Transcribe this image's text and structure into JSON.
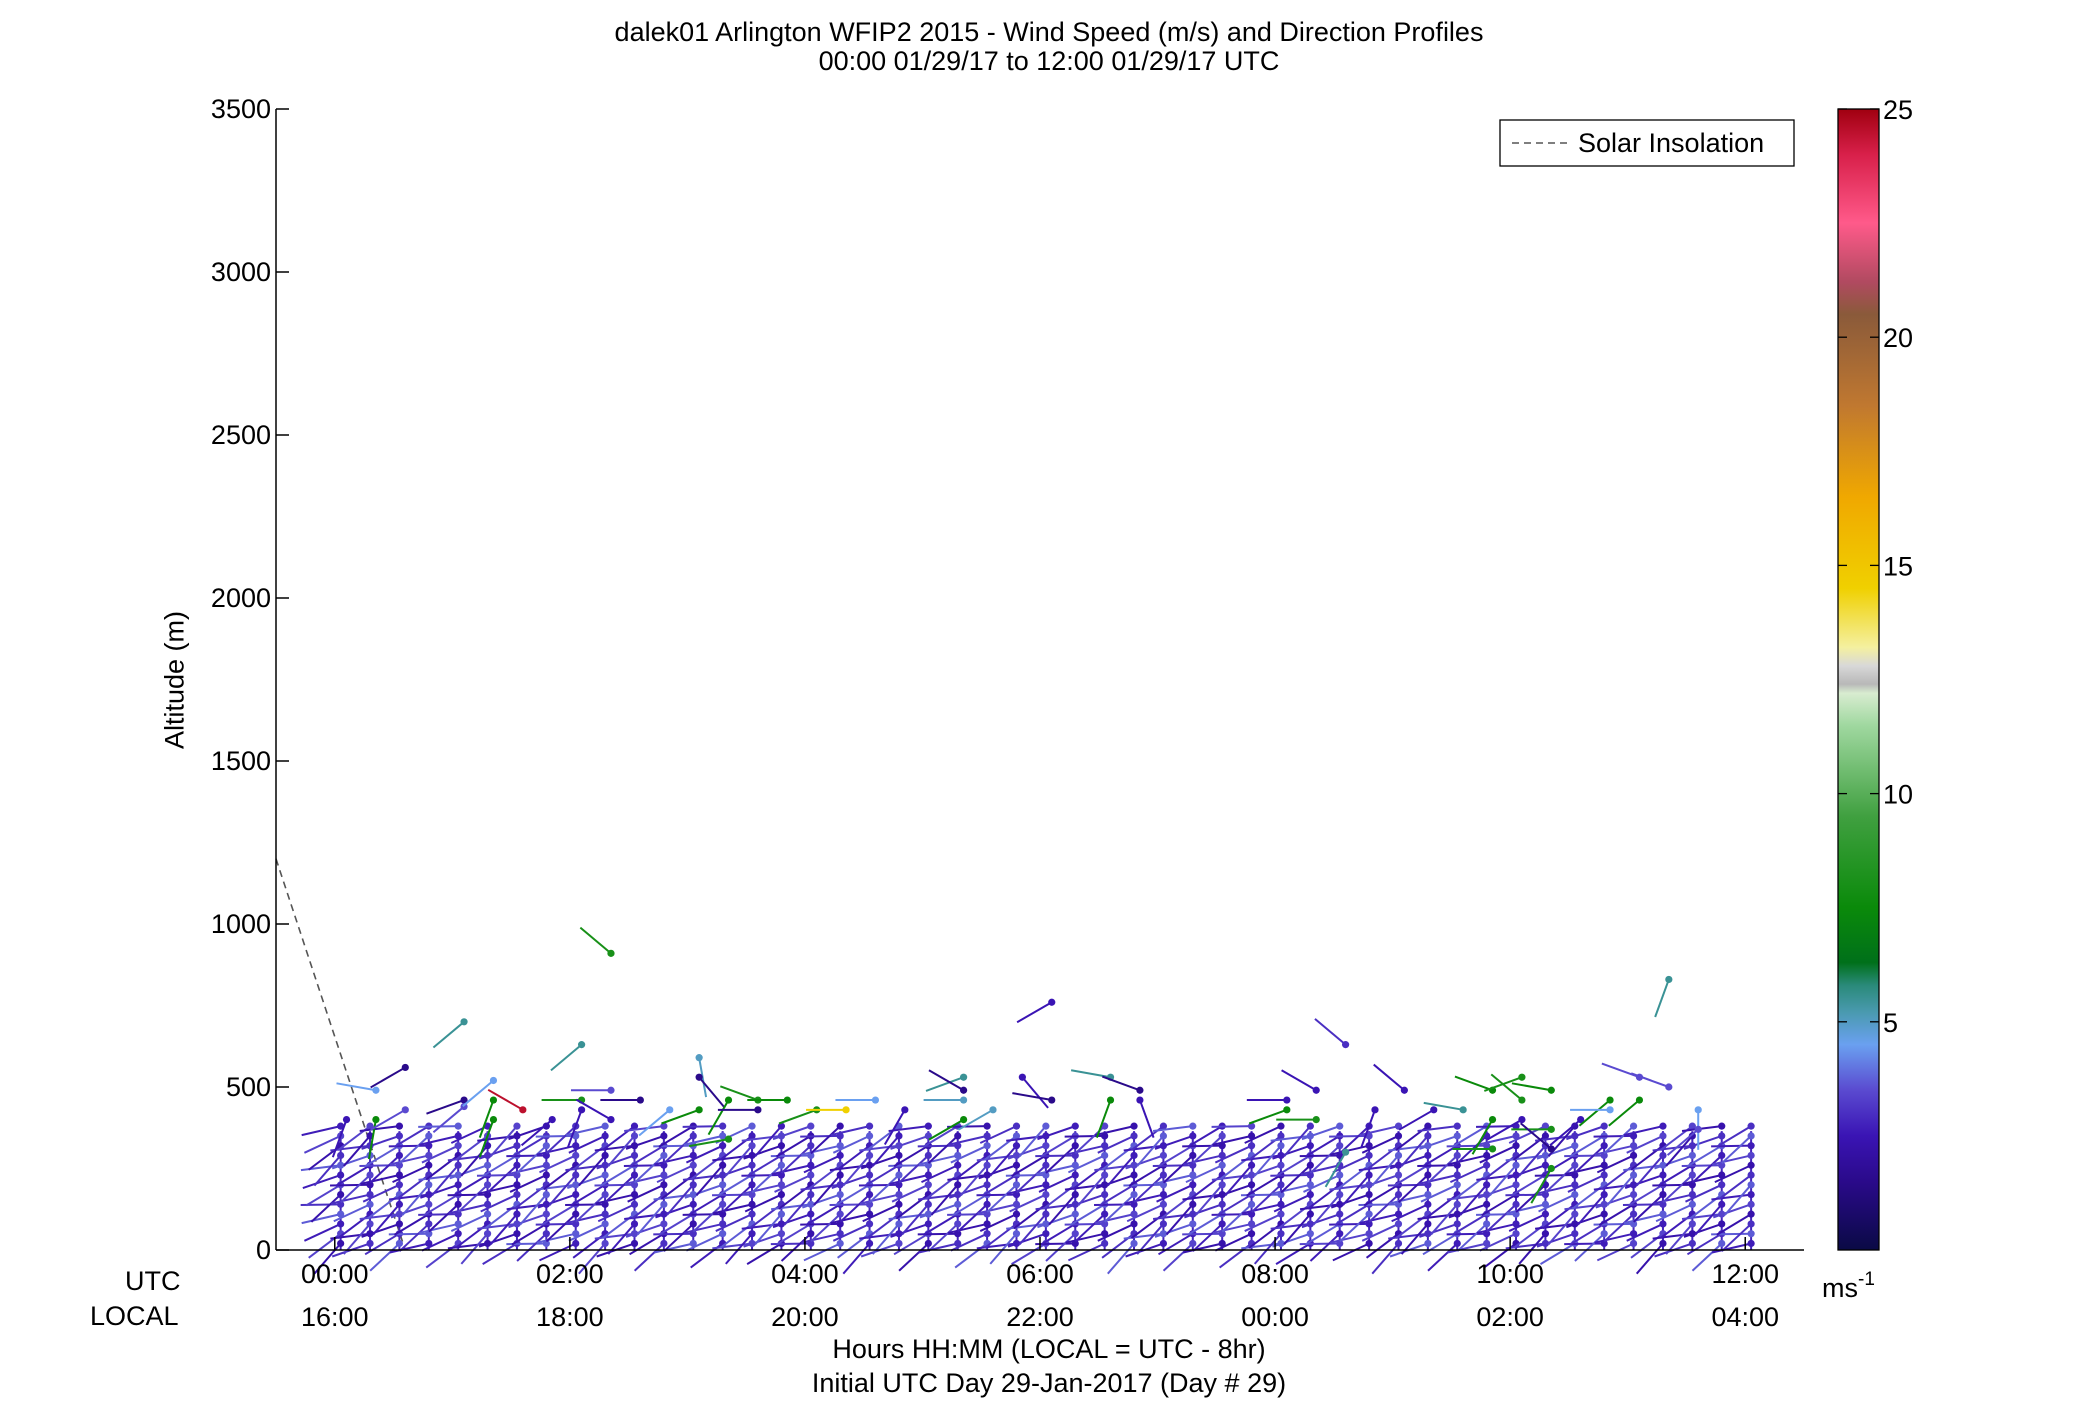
{
  "chart_data": {
    "type": "scatter",
    "title": "dalek01 Arlington WFIP2 2015 - Wind Speed (m/s) and Direction Profiles",
    "subtitle": "00:00 01/29/17 to 12:00 01/29/17  UTC",
    "ylabel": "Altitude (m)",
    "xlabel": "Hours HH:MM  (LOCAL = UTC - 8hr)",
    "xlabel2": "Initial UTC Day 29-Jan-2017 (Day # 29)",
    "row_label_utc": "UTC",
    "row_label_local": "LOCAL",
    "ylim": [
      0,
      3500
    ],
    "yticks": [
      0,
      500,
      1000,
      1500,
      2000,
      2500,
      3000,
      3500
    ],
    "xlim": [
      -0.5,
      12.5
    ],
    "xticks_utc": [
      "00:00",
      "02:00",
      "04:00",
      "06:00",
      "08:00",
      "10:00",
      "12:00"
    ],
    "xticks_local": [
      "16:00",
      "18:00",
      "20:00",
      "22:00",
      "00:00",
      "02:00",
      "04:00"
    ],
    "legend": {
      "position": "top-right",
      "entries": [
        "Solar Insolation"
      ]
    },
    "colorbar": {
      "label": "ms-1",
      "range": [
        0,
        25
      ],
      "ticks": [
        5,
        10,
        15,
        20,
        25
      ],
      "colors": [
        [
          0,
          "#0a0a45"
        ],
        [
          1.5,
          "#2a0a8a"
        ],
        [
          2.5,
          "#3a14b4"
        ],
        [
          3.5,
          "#5a4ad0"
        ],
        [
          4.5,
          "#6aa0f0"
        ],
        [
          5.2,
          "#4a9ab0"
        ],
        [
          5.8,
          "#2a8a7a"
        ],
        [
          6.3,
          "#00701a"
        ],
        [
          7.5,
          "#0a8a0a"
        ],
        [
          9.5,
          "#40a040"
        ],
        [
          11.5,
          "#a0d8a0"
        ],
        [
          12.2,
          "#d8ecd0"
        ],
        [
          12.4,
          "#b8b8b8"
        ],
        [
          12.8,
          "#d8d8d8"
        ],
        [
          13.2,
          "#f4f0a0"
        ],
        [
          14.5,
          "#f0d000"
        ],
        [
          16.5,
          "#f0a800"
        ],
        [
          18.5,
          "#c07830"
        ],
        [
          20.5,
          "#8a5a3a"
        ],
        [
          21.2,
          "#b04a60"
        ],
        [
          22.5,
          "#ff5a8a"
        ],
        [
          24,
          "#d8204a"
        ],
        [
          25,
          "#a00010"
        ]
      ]
    },
    "solar_insolation": [
      [
        -0.5,
        1200
      ],
      [
        0.6,
        0
      ]
    ],
    "profiles": {
      "times_h": [
        0.05,
        0.3,
        0.55,
        0.8,
        1.05,
        1.3,
        1.55,
        1.8,
        2.05,
        2.3,
        2.55,
        2.8,
        3.05,
        3.3,
        3.55,
        3.8,
        4.05,
        4.3,
        4.55,
        4.8,
        5.05,
        5.3,
        5.55,
        5.8,
        6.05,
        6.3,
        6.55,
        6.8,
        7.05,
        7.3,
        7.55,
        7.8,
        8.05,
        8.3,
        8.55,
        8.8,
        9.05,
        9.3,
        9.55,
        9.8,
        10.05,
        10.3,
        10.55,
        10.8,
        11.05,
        11.3,
        11.55,
        11.8,
        12.05
      ],
      "levels_m": [
        20,
        50,
        80,
        110,
        140,
        170,
        200,
        230,
        260,
        290,
        320,
        350,
        380
      ],
      "typical_speed_ms": 3,
      "typical_direction_deg": 245
    },
    "upper_points": [
      {
        "t": 0.1,
        "alt": 400,
        "spd": 2.5,
        "dir": 200
      },
      {
        "t": 0.35,
        "alt": 490,
        "spd": 4.5,
        "dir": 280
      },
      {
        "t": 0.35,
        "alt": 400,
        "spd": 7.5,
        "dir": 190
      },
      {
        "t": 0.6,
        "alt": 560,
        "spd": 1.5,
        "dir": 240
      },
      {
        "t": 0.6,
        "alt": 430,
        "spd": 3.5,
        "dir": 240
      },
      {
        "t": 1.1,
        "alt": 700,
        "spd": 5.5,
        "dir": 230
      },
      {
        "t": 1.1,
        "alt": 460,
        "spd": 1.5,
        "dir": 250
      },
      {
        "t": 1.1,
        "alt": 440,
        "spd": 3.5,
        "dir": 230
      },
      {
        "t": 1.35,
        "alt": 520,
        "spd": 4.5,
        "dir": 230
      },
      {
        "t": 1.35,
        "alt": 400,
        "spd": 7.5,
        "dir": 200
      },
      {
        "t": 1.35,
        "alt": 460,
        "spd": 7.5,
        "dir": 200
      },
      {
        "t": 1.6,
        "alt": 430,
        "spd": 24.5,
        "dir": 300
      },
      {
        "t": 1.85,
        "alt": 400,
        "spd": 2.5,
        "dir": 230
      },
      {
        "t": 2.1,
        "alt": 630,
        "spd": 5.5,
        "dir": 230
      },
      {
        "t": 2.1,
        "alt": 460,
        "spd": 8,
        "dir": 270
      },
      {
        "t": 2.1,
        "alt": 430,
        "spd": 2.5,
        "dir": 200
      },
      {
        "t": 2.35,
        "alt": 910,
        "spd": 8,
        "dir": 310
      },
      {
        "t": 2.35,
        "alt": 490,
        "spd": 3.5,
        "dir": 270
      },
      {
        "t": 2.35,
        "alt": 400,
        "spd": 2.5,
        "dir": 300
      },
      {
        "t": 2.6,
        "alt": 460,
        "spd": 1.5,
        "dir": 270
      },
      {
        "t": 2.85,
        "alt": 430,
        "spd": 4.5,
        "dir": 230
      },
      {
        "t": 3.1,
        "alt": 590,
        "spd": 5,
        "dir": 170
      },
      {
        "t": 3.1,
        "alt": 530,
        "spd": 1.5,
        "dir": 140
      },
      {
        "t": 3.1,
        "alt": 430,
        "spd": 7.5,
        "dir": 250
      },
      {
        "t": 3.35,
        "alt": 460,
        "spd": 7.5,
        "dir": 210
      },
      {
        "t": 3.35,
        "alt": 340,
        "spd": 8,
        "dir": 260
      },
      {
        "t": 3.6,
        "alt": 430,
        "spd": 1.5,
        "dir": 270
      },
      {
        "t": 3.6,
        "alt": 460,
        "spd": 8,
        "dir": 290
      },
      {
        "t": 3.85,
        "alt": 460,
        "spd": 7.5,
        "dir": 270
      },
      {
        "t": 4.1,
        "alt": 430,
        "spd": 8,
        "dir": 250
      },
      {
        "t": 4.35,
        "alt": 430,
        "spd": 14.5,
        "dir": 270
      },
      {
        "t": 4.6,
        "alt": 460,
        "spd": 4.5,
        "dir": 270
      },
      {
        "t": 4.85,
        "alt": 430,
        "spd": 2.5,
        "dir": 210
      },
      {
        "t": 5.35,
        "alt": 530,
        "spd": 5.5,
        "dir": 250
      },
      {
        "t": 5.35,
        "alt": 490,
        "spd": 1.5,
        "dir": 300
      },
      {
        "t": 5.35,
        "alt": 460,
        "spd": 5,
        "dir": 270
      },
      {
        "t": 5.35,
        "alt": 400,
        "spd": 7.5,
        "dir": 240
      },
      {
        "t": 5.6,
        "alt": 430,
        "spd": 5,
        "dir": 240
      },
      {
        "t": 5.85,
        "alt": 530,
        "spd": 2.5,
        "dir": 140
      },
      {
        "t": 6.1,
        "alt": 460,
        "spd": 1.5,
        "dir": 280
      },
      {
        "t": 6.1,
        "alt": 760,
        "spd": 2.5,
        "dir": 240
      },
      {
        "t": 6.6,
        "alt": 530,
        "spd": 5.5,
        "dir": 280
      },
      {
        "t": 6.6,
        "alt": 460,
        "spd": 7.5,
        "dir": 200
      },
      {
        "t": 6.85,
        "alt": 490,
        "spd": 1.5,
        "dir": 290
      },
      {
        "t": 6.85,
        "alt": 460,
        "spd": 2.5,
        "dir": 160
      },
      {
        "t": 8.1,
        "alt": 460,
        "spd": 2.5,
        "dir": 270
      },
      {
        "t": 8.1,
        "alt": 430,
        "spd": 7.5,
        "dir": 250
      },
      {
        "t": 8.35,
        "alt": 490,
        "spd": 2.5,
        "dir": 300
      },
      {
        "t": 8.35,
        "alt": 400,
        "spd": 8,
        "dir": 270
      },
      {
        "t": 8.6,
        "alt": 630,
        "spd": 3,
        "dir": 310
      },
      {
        "t": 8.6,
        "alt": 300,
        "spd": 5.5,
        "dir": 210
      },
      {
        "t": 8.85,
        "alt": 430,
        "spd": 2.5,
        "dir": 200
      },
      {
        "t": 9.1,
        "alt": 490,
        "spd": 2.5,
        "dir": 310
      },
      {
        "t": 9.35,
        "alt": 430,
        "spd": 2.5,
        "dir": 240
      },
      {
        "t": 9.6,
        "alt": 430,
        "spd": 5.5,
        "dir": 280
      },
      {
        "t": 9.85,
        "alt": 490,
        "spd": 7.5,
        "dir": 290
      },
      {
        "t": 9.85,
        "alt": 400,
        "spd": 7.5,
        "dir": 210
      },
      {
        "t": 9.85,
        "alt": 310,
        "spd": 8,
        "dir": 270
      },
      {
        "t": 10.1,
        "alt": 530,
        "spd": 8,
        "dir": 250
      },
      {
        "t": 10.1,
        "alt": 460,
        "spd": 8,
        "dir": 310
      },
      {
        "t": 10.1,
        "alt": 400,
        "spd": 2.5,
        "dir": 240
      },
      {
        "t": 10.35,
        "alt": 490,
        "spd": 7.5,
        "dir": 280
      },
      {
        "t": 10.35,
        "alt": 370,
        "spd": 8,
        "dir": 270
      },
      {
        "t": 10.35,
        "alt": 310,
        "spd": 1.5,
        "dir": 310
      },
      {
        "t": 10.35,
        "alt": 250,
        "spd": 8,
        "dir": 210
      },
      {
        "t": 10.6,
        "alt": 400,
        "spd": 2.5,
        "dir": 230
      },
      {
        "t": 10.85,
        "alt": 460,
        "spd": 7.5,
        "dir": 230
      },
      {
        "t": 10.85,
        "alt": 430,
        "spd": 4.5,
        "dir": 270
      },
      {
        "t": 11.1,
        "alt": 530,
        "spd": 3.5,
        "dir": 290
      },
      {
        "t": 11.1,
        "alt": 460,
        "spd": 7.5,
        "dir": 230
      },
      {
        "t": 11.35,
        "alt": 830,
        "spd": 5.5,
        "dir": 200
      },
      {
        "t": 11.35,
        "alt": 500,
        "spd": 3.5,
        "dir": 290
      },
      {
        "t": 11.6,
        "alt": 430,
        "spd": 4.5,
        "dir": 180
      },
      {
        "t": 11.6,
        "alt": 370,
        "spd": 3.5,
        "dir": 230
      }
    ]
  }
}
